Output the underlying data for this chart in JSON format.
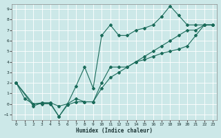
{
  "title": "",
  "xlabel": "Humidex (Indice chaleur)",
  "bg_color": "#cce8e8",
  "line_color": "#1a6b5a",
  "grid_color": "#ffffff",
  "xlim": [
    -0.5,
    23.5
  ],
  "ylim": [
    -1.5,
    9.5
  ],
  "xticks": [
    0,
    1,
    2,
    3,
    4,
    5,
    6,
    7,
    8,
    9,
    10,
    11,
    12,
    13,
    14,
    15,
    16,
    17,
    18,
    19,
    20,
    21,
    22,
    23
  ],
  "yticks": [
    -1,
    0,
    1,
    2,
    3,
    4,
    5,
    6,
    7,
    8,
    9
  ],
  "line1_x": [
    0,
    1,
    2,
    3,
    4,
    5,
    6,
    7,
    8,
    9,
    10,
    11,
    12,
    13,
    14,
    15,
    16,
    17,
    18,
    19,
    20,
    21,
    22,
    23
  ],
  "line1_y": [
    2,
    0.5,
    0,
    0,
    0,
    -1.2,
    0,
    1.7,
    3.5,
    1.5,
    6.5,
    7.5,
    6.5,
    6.5,
    7.0,
    7.2,
    7.5,
    8.3,
    9.3,
    8.4,
    7.5,
    7.5,
    7.5,
    7.5
  ],
  "line2_x": [
    0,
    2,
    3,
    4,
    5,
    6,
    7,
    8,
    9,
    10,
    11,
    12,
    13,
    14,
    15,
    16,
    17,
    18,
    19,
    20,
    21,
    22,
    23
  ],
  "line2_y": [
    2,
    0,
    0.1,
    0.1,
    -0.2,
    0,
    0.5,
    0.2,
    0.2,
    2.0,
    3.5,
    3.5,
    3.5,
    4.0,
    4.2,
    4.5,
    4.8,
    5.0,
    5.2,
    5.5,
    6.5,
    7.5,
    7.5
  ],
  "line3_x": [
    0,
    2,
    3,
    4,
    5,
    6,
    7,
    8,
    9,
    10,
    11,
    12,
    13,
    14,
    15,
    16,
    17,
    18,
    19,
    20,
    21,
    22,
    23
  ],
  "line3_y": [
    2,
    -0.2,
    0.1,
    0.1,
    -1.2,
    -0.1,
    0.2,
    0.2,
    0.2,
    1.5,
    2.5,
    3.0,
    3.5,
    4.0,
    4.5,
    5.0,
    5.5,
    6.0,
    6.5,
    7.0,
    7.0,
    7.5,
    7.5
  ]
}
